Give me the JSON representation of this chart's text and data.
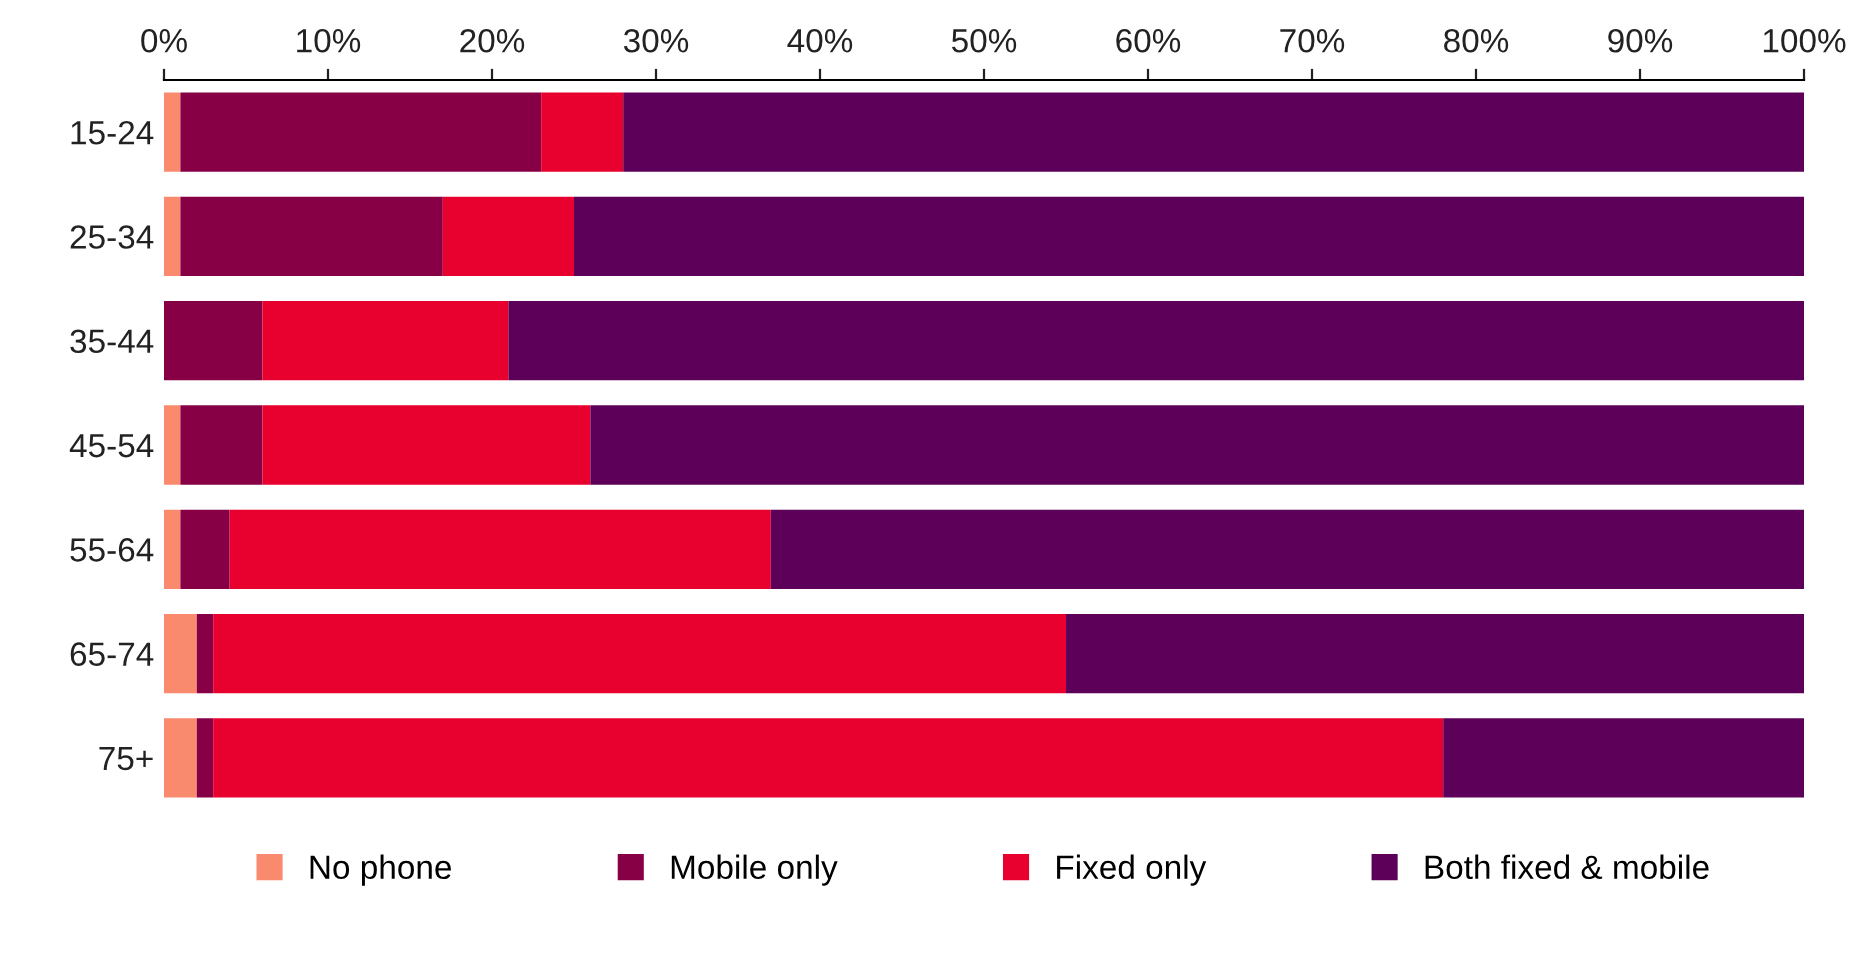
{
  "chart_data": {
    "type": "bar",
    "orientation": "horizontal",
    "stacked": true,
    "categories": [
      "15-24",
      "25-34",
      "35-44",
      "45-54",
      "55-64",
      "65-74",
      "75+"
    ],
    "series": [
      {
        "name": "No phone",
        "color": "#f98a6e",
        "values": [
          1,
          1,
          0,
          1,
          1,
          2,
          2
        ]
      },
      {
        "name": "Mobile only",
        "color": "#870046",
        "values": [
          22,
          16,
          6,
          5,
          3,
          1,
          1
        ]
      },
      {
        "name": "Fixed only",
        "color": "#e8002f",
        "values": [
          5,
          8,
          15,
          20,
          33,
          52,
          75
        ]
      },
      {
        "name": "Both fixed & mobile",
        "color": "#5c0059",
        "values": [
          72,
          75,
          79,
          74,
          63,
          45,
          22
        ]
      }
    ],
    "xlim": [
      0,
      100
    ],
    "xticks": [
      {
        "value": 0,
        "label": "0%"
      },
      {
        "value": 10,
        "label": "10%"
      },
      {
        "value": 20,
        "label": "20%"
      },
      {
        "value": 30,
        "label": "30%"
      },
      {
        "value": 40,
        "label": "40%"
      },
      {
        "value": 50,
        "label": "50%"
      },
      {
        "value": 60,
        "label": "60%"
      },
      {
        "value": 70,
        "label": "70%"
      },
      {
        "value": 80,
        "label": "80%"
      },
      {
        "value": 90,
        "label": "90%"
      },
      {
        "value": 100,
        "label": "100%"
      }
    ],
    "grid": false,
    "legend": "bottom"
  }
}
